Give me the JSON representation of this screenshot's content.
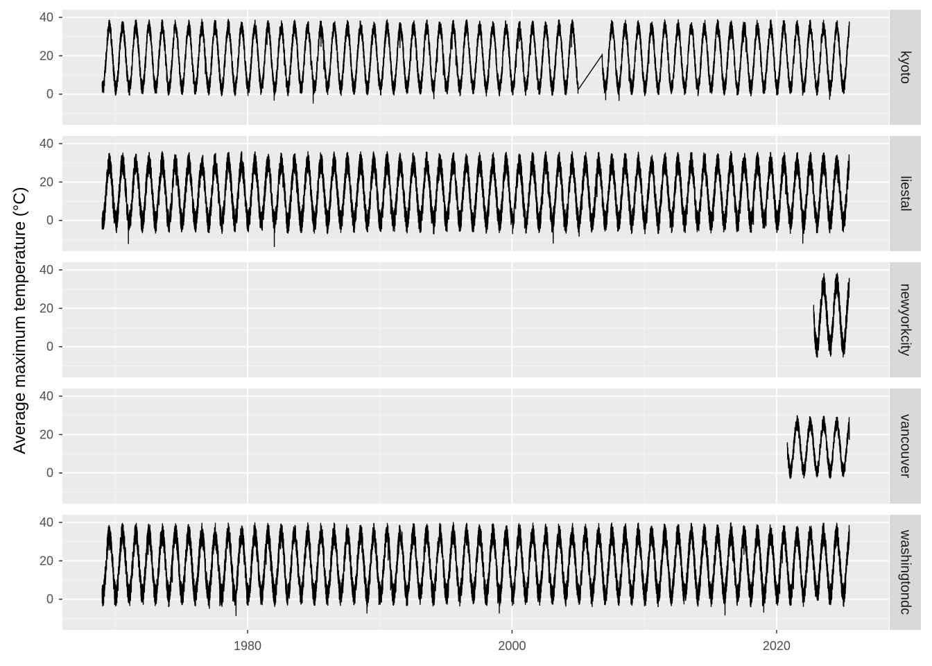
{
  "chart_data": {
    "type": "line",
    "title": "",
    "xlabel": "",
    "ylabel": "Average maximum temperature (°C)",
    "xlim": [
      1966.0,
      2028.5
    ],
    "x_ticks": [
      1980,
      2000,
      2020
    ],
    "x_tick_labels": [
      "1980",
      "2000",
      "2020"
    ],
    "y_ticks": [
      0,
      20,
      40
    ],
    "y_tick_labels": [
      "0",
      "20",
      "40"
    ],
    "grid": true,
    "facet_layout": "rows",
    "panels": [
      {
        "name": "kyoto",
        "ylim": [
          -16,
          44
        ],
        "series": {
          "x_start": 1969.0,
          "x_end": 2025.5,
          "gap": [
            2005.0,
            2006.8
          ],
          "summer_peak_approx": 35,
          "winter_low_approx": 3,
          "daily_noise": 4
        }
      },
      {
        "name": "liestal",
        "ylim": [
          -16,
          44
        ],
        "series": {
          "x_start": 1969.0,
          "x_end": 2025.5,
          "gap": null,
          "summer_peak_approx": 30,
          "winter_low_approx": -1,
          "daily_noise": 6
        }
      },
      {
        "name": "newyorkcity",
        "ylim": [
          -16,
          44
        ],
        "series": {
          "x_start": 2022.8,
          "x_end": 2025.5,
          "gap": null,
          "summer_peak_approx": 33,
          "winter_low_approx": 0,
          "daily_noise": 6
        }
      },
      {
        "name": "vancouver",
        "ylim": [
          -16,
          44
        ],
        "series": {
          "x_start": 2020.8,
          "x_end": 2025.5,
          "gap": null,
          "summer_peak_approx": 26,
          "winter_low_approx": 1,
          "daily_noise": 4
        }
      },
      {
        "name": "washingtondc",
        "ylim": [
          -16,
          44
        ],
        "series": {
          "x_start": 1969.0,
          "x_end": 2025.5,
          "gap": null,
          "summer_peak_approx": 34,
          "winter_low_approx": 2,
          "daily_noise": 6
        }
      }
    ],
    "colors": {
      "panel_background": "#ebebeb",
      "grid_major": "#ffffff",
      "grid_minor": "#f5f5f5",
      "strip_background": "#d9d9d9",
      "line": "#000000",
      "tick_text": "#4d4d4d",
      "strip_text": "#1a1a1a"
    }
  }
}
